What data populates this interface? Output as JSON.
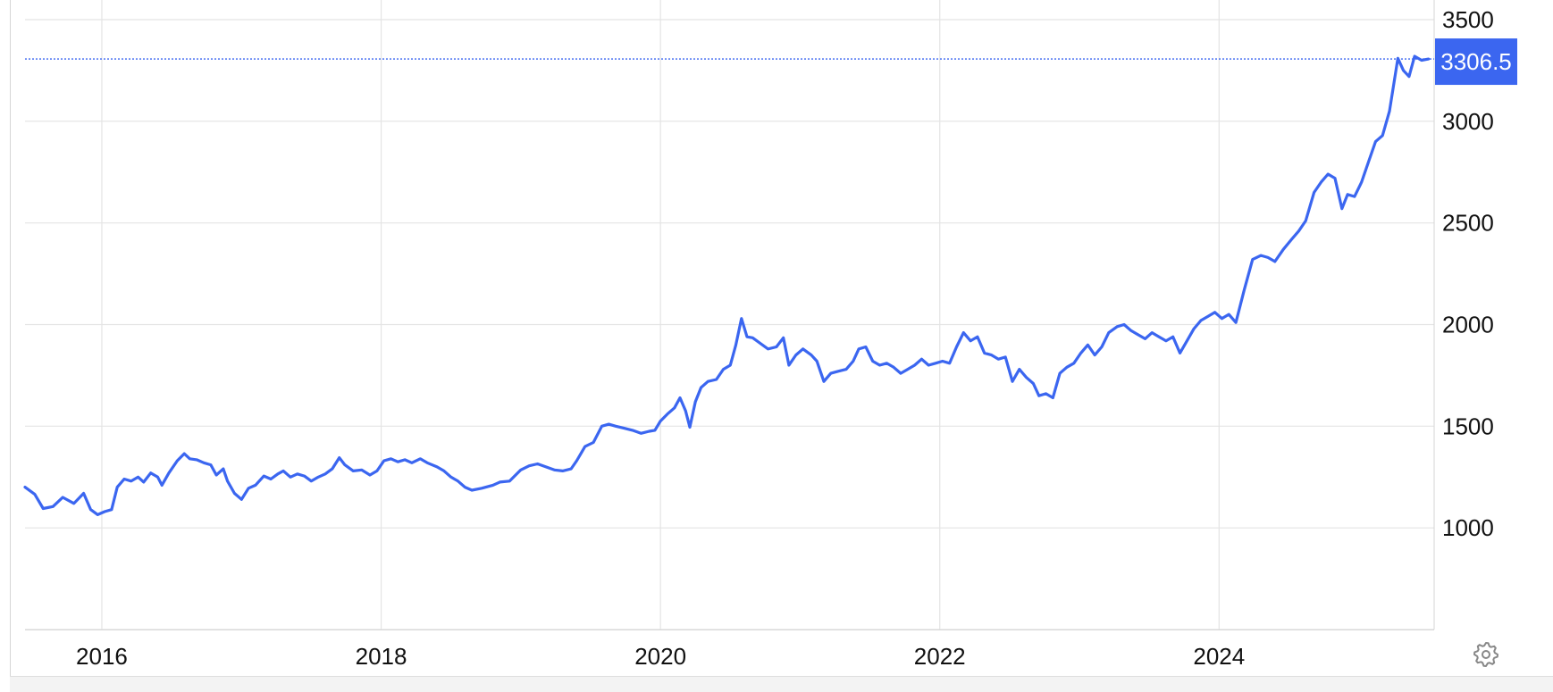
{
  "colors": {
    "line": "#3b66f0",
    "grid": "#e4e4e4",
    "axis_text": "#111111",
    "badge_bg": "#3b66f0",
    "badge_text": "#ffffff",
    "icon": "#888888"
  },
  "icons": {
    "settings": "gear-icon"
  },
  "chart_data": {
    "type": "line",
    "title": "",
    "xlabel": "",
    "ylabel": "",
    "y_axis_position": "right",
    "grid": true,
    "xlim": [
      2015.45,
      2025.54
    ],
    "ylim": [
      500,
      3500
    ],
    "yticks": [
      1000,
      1500,
      2000,
      2500,
      3000,
      3500
    ],
    "ytick_labels": [
      "1000",
      "1500",
      "2000",
      "2500",
      "3000",
      "3500"
    ],
    "xticks": [
      2016,
      2018,
      2020,
      2022,
      2024
    ],
    "xtick_labels": [
      "2016",
      "2018",
      "2020",
      "2022",
      "2024"
    ],
    "last_value": 3306.5,
    "last_value_label": "3306.5",
    "series": [
      {
        "values": [
          [
            2015.45,
            1200
          ],
          [
            2015.52,
            1165
          ],
          [
            2015.58,
            1095
          ],
          [
            2015.65,
            1105
          ],
          [
            2015.72,
            1150
          ],
          [
            2015.8,
            1120
          ],
          [
            2015.87,
            1170
          ],
          [
            2015.92,
            1090
          ],
          [
            2015.97,
            1065
          ],
          [
            2016.02,
            1080
          ],
          [
            2016.07,
            1090
          ],
          [
            2016.11,
            1200
          ],
          [
            2016.16,
            1240
          ],
          [
            2016.21,
            1230
          ],
          [
            2016.26,
            1250
          ],
          [
            2016.3,
            1225
          ],
          [
            2016.35,
            1270
          ],
          [
            2016.4,
            1250
          ],
          [
            2016.43,
            1210
          ],
          [
            2016.48,
            1270
          ],
          [
            2016.54,
            1330
          ],
          [
            2016.59,
            1365
          ],
          [
            2016.63,
            1340
          ],
          [
            2016.68,
            1335
          ],
          [
            2016.73,
            1320
          ],
          [
            2016.78,
            1310
          ],
          [
            2016.82,
            1260
          ],
          [
            2016.87,
            1290
          ],
          [
            2016.9,
            1230
          ],
          [
            2016.95,
            1170
          ],
          [
            2017.0,
            1140
          ],
          [
            2017.05,
            1195
          ],
          [
            2017.1,
            1210
          ],
          [
            2017.16,
            1255
          ],
          [
            2017.21,
            1240
          ],
          [
            2017.26,
            1265
          ],
          [
            2017.3,
            1280
          ],
          [
            2017.35,
            1250
          ],
          [
            2017.4,
            1265
          ],
          [
            2017.45,
            1255
          ],
          [
            2017.5,
            1230
          ],
          [
            2017.55,
            1250
          ],
          [
            2017.6,
            1265
          ],
          [
            2017.65,
            1290
          ],
          [
            2017.7,
            1345
          ],
          [
            2017.74,
            1310
          ],
          [
            2017.8,
            1280
          ],
          [
            2017.86,
            1285
          ],
          [
            2017.92,
            1260
          ],
          [
            2017.97,
            1280
          ],
          [
            2018.02,
            1330
          ],
          [
            2018.07,
            1340
          ],
          [
            2018.12,
            1325
          ],
          [
            2018.17,
            1335
          ],
          [
            2018.22,
            1320
          ],
          [
            2018.28,
            1340
          ],
          [
            2018.33,
            1320
          ],
          [
            2018.4,
            1300
          ],
          [
            2018.45,
            1280
          ],
          [
            2018.5,
            1250
          ],
          [
            2018.55,
            1230
          ],
          [
            2018.6,
            1200
          ],
          [
            2018.65,
            1185
          ],
          [
            2018.72,
            1195
          ],
          [
            2018.8,
            1210
          ],
          [
            2018.85,
            1225
          ],
          [
            2018.92,
            1230
          ],
          [
            2019.0,
            1285
          ],
          [
            2019.06,
            1305
          ],
          [
            2019.12,
            1315
          ],
          [
            2019.18,
            1300
          ],
          [
            2019.24,
            1285
          ],
          [
            2019.3,
            1280
          ],
          [
            2019.36,
            1290
          ],
          [
            2019.4,
            1330
          ],
          [
            2019.46,
            1400
          ],
          [
            2019.52,
            1420
          ],
          [
            2019.58,
            1500
          ],
          [
            2019.63,
            1510
          ],
          [
            2019.68,
            1500
          ],
          [
            2019.74,
            1490
          ],
          [
            2019.8,
            1480
          ],
          [
            2019.86,
            1465
          ],
          [
            2019.92,
            1475
          ],
          [
            2019.96,
            1480
          ],
          [
            2020.0,
            1525
          ],
          [
            2020.05,
            1560
          ],
          [
            2020.1,
            1590
          ],
          [
            2020.14,
            1640
          ],
          [
            2020.18,
            1575
          ],
          [
            2020.21,
            1495
          ],
          [
            2020.25,
            1620
          ],
          [
            2020.29,
            1690
          ],
          [
            2020.34,
            1720
          ],
          [
            2020.4,
            1730
          ],
          [
            2020.45,
            1780
          ],
          [
            2020.5,
            1800
          ],
          [
            2020.54,
            1900
          ],
          [
            2020.58,
            2030
          ],
          [
            2020.62,
            1940
          ],
          [
            2020.66,
            1935
          ],
          [
            2020.71,
            1910
          ],
          [
            2020.77,
            1880
          ],
          [
            2020.83,
            1890
          ],
          [
            2020.88,
            1935
          ],
          [
            2020.92,
            1800
          ],
          [
            2020.97,
            1850
          ],
          [
            2021.02,
            1880
          ],
          [
            2021.08,
            1850
          ],
          [
            2021.12,
            1820
          ],
          [
            2021.17,
            1720
          ],
          [
            2021.22,
            1760
          ],
          [
            2021.27,
            1770
          ],
          [
            2021.33,
            1780
          ],
          [
            2021.38,
            1820
          ],
          [
            2021.42,
            1880
          ],
          [
            2021.47,
            1890
          ],
          [
            2021.52,
            1820
          ],
          [
            2021.57,
            1800
          ],
          [
            2021.62,
            1810
          ],
          [
            2021.67,
            1790
          ],
          [
            2021.72,
            1760
          ],
          [
            2021.77,
            1780
          ],
          [
            2021.82,
            1800
          ],
          [
            2021.87,
            1830
          ],
          [
            2021.92,
            1800
          ],
          [
            2021.97,
            1810
          ],
          [
            2022.02,
            1820
          ],
          [
            2022.07,
            1810
          ],
          [
            2022.12,
            1890
          ],
          [
            2022.17,
            1960
          ],
          [
            2022.22,
            1920
          ],
          [
            2022.27,
            1940
          ],
          [
            2022.32,
            1860
          ],
          [
            2022.37,
            1850
          ],
          [
            2022.42,
            1830
          ],
          [
            2022.47,
            1840
          ],
          [
            2022.52,
            1720
          ],
          [
            2022.57,
            1780
          ],
          [
            2022.62,
            1740
          ],
          [
            2022.67,
            1710
          ],
          [
            2022.71,
            1650
          ],
          [
            2022.76,
            1660
          ],
          [
            2022.81,
            1640
          ],
          [
            2022.86,
            1760
          ],
          [
            2022.91,
            1790
          ],
          [
            2022.96,
            1810
          ],
          [
            2023.01,
            1860
          ],
          [
            2023.06,
            1900
          ],
          [
            2023.11,
            1850
          ],
          [
            2023.16,
            1890
          ],
          [
            2023.21,
            1960
          ],
          [
            2023.27,
            1990
          ],
          [
            2023.32,
            2000
          ],
          [
            2023.37,
            1970
          ],
          [
            2023.42,
            1950
          ],
          [
            2023.47,
            1930
          ],
          [
            2023.52,
            1960
          ],
          [
            2023.57,
            1940
          ],
          [
            2023.62,
            1920
          ],
          [
            2023.67,
            1940
          ],
          [
            2023.72,
            1860
          ],
          [
            2023.77,
            1920
          ],
          [
            2023.82,
            1980
          ],
          [
            2023.87,
            2020
          ],
          [
            2023.92,
            2040
          ],
          [
            2023.97,
            2060
          ],
          [
            2024.02,
            2030
          ],
          [
            2024.07,
            2050
          ],
          [
            2024.12,
            2010
          ],
          [
            2024.18,
            2170
          ],
          [
            2024.24,
            2320
          ],
          [
            2024.3,
            2340
          ],
          [
            2024.35,
            2330
          ],
          [
            2024.4,
            2310
          ],
          [
            2024.46,
            2370
          ],
          [
            2024.52,
            2420
          ],
          [
            2024.57,
            2460
          ],
          [
            2024.62,
            2510
          ],
          [
            2024.68,
            2650
          ],
          [
            2024.73,
            2700
          ],
          [
            2024.78,
            2740
          ],
          [
            2024.83,
            2720
          ],
          [
            2024.88,
            2570
          ],
          [
            2024.92,
            2640
          ],
          [
            2024.97,
            2630
          ],
          [
            2025.02,
            2700
          ],
          [
            2025.07,
            2800
          ],
          [
            2025.12,
            2900
          ],
          [
            2025.17,
            2930
          ],
          [
            2025.22,
            3050
          ],
          [
            2025.28,
            3310
          ],
          [
            2025.32,
            3250
          ],
          [
            2025.36,
            3220
          ],
          [
            2025.4,
            3320
          ],
          [
            2025.45,
            3300
          ],
          [
            2025.5,
            3306.5
          ]
        ]
      }
    ]
  }
}
